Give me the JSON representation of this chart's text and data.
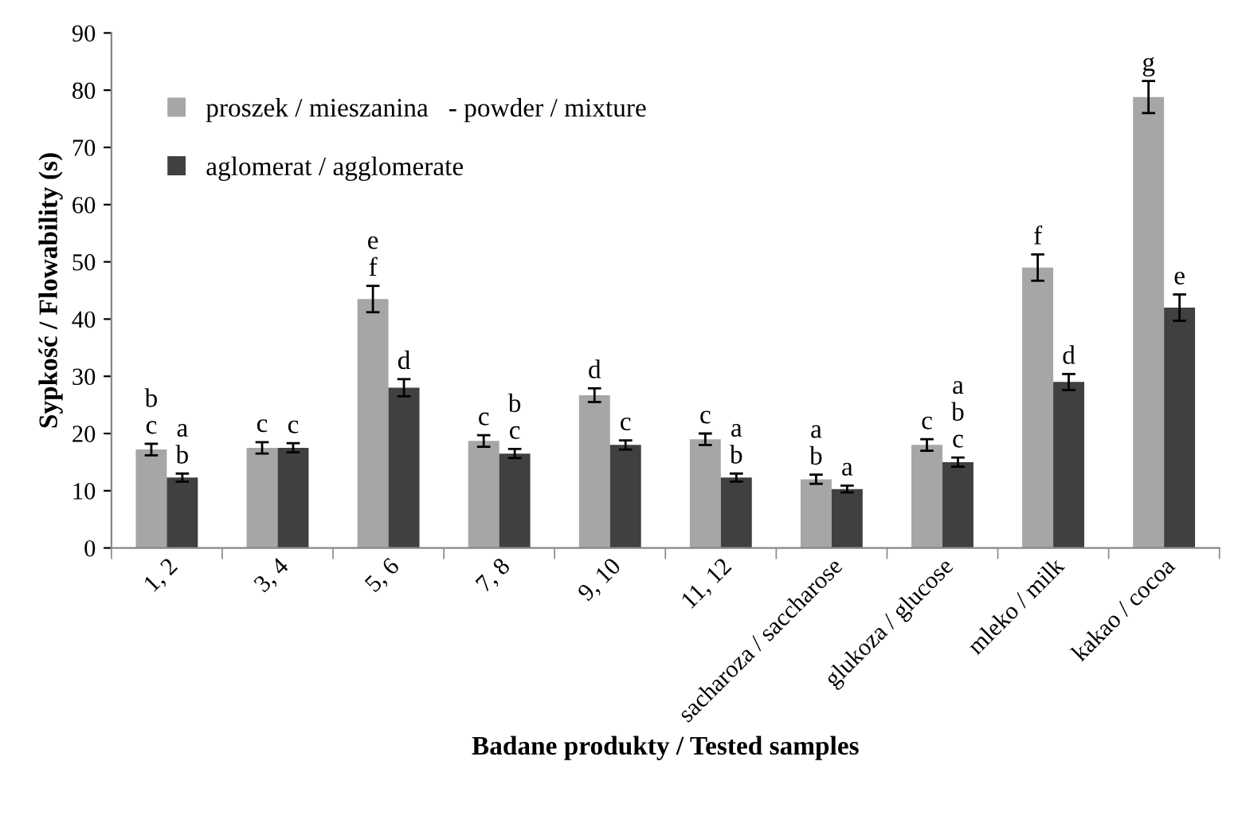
{
  "chart_data": {
    "type": "bar",
    "xlabel": "Badane produkty / Tested samples",
    "ylabel": "Sypkość / Flowability (s)",
    "categories": [
      "1, 2",
      "3, 4",
      "5, 6",
      "7, 8",
      "9, 10",
      "11, 12",
      "sacharoza / saccharose",
      "glukoza / glucose",
      "mleko / milk",
      "kakao / cocoa"
    ],
    "series": [
      {
        "name": "proszek / mieszanina   - powder / mixture",
        "color": "#a6a6a6",
        "values": [
          17.2,
          17.5,
          43.5,
          18.7,
          26.7,
          19,
          12,
          18,
          49,
          78.8
        ],
        "errors": [
          1,
          1,
          2.3,
          1,
          1.2,
          1,
          0.8,
          1,
          2.3,
          2.8
        ],
        "value_labels": [
          "b\nc",
          "c",
          "e\nf",
          "c",
          "d",
          "c",
          "a\nb",
          "c",
          "f",
          "g"
        ]
      },
      {
        "name": "aglomerat / agglomerate",
        "color": "#404040",
        "values": [
          12.3,
          17.5,
          28,
          16.5,
          18,
          12.3,
          10.3,
          15,
          29,
          42
        ],
        "errors": [
          0.7,
          0.8,
          1.5,
          0.8,
          0.8,
          0.7,
          0.6,
          0.8,
          1.4,
          2.3
        ],
        "value_labels": [
          "a\nb",
          "c",
          "d",
          "b\nc",
          "c",
          "a\nb",
          "a",
          "a\nb\nc",
          "d",
          "e"
        ]
      }
    ],
    "ylim": [
      0,
      90
    ],
    "yticks": [
      0,
      10,
      20,
      30,
      40,
      50,
      60,
      70,
      80,
      90
    ],
    "grid": false,
    "legend": "top left"
  }
}
